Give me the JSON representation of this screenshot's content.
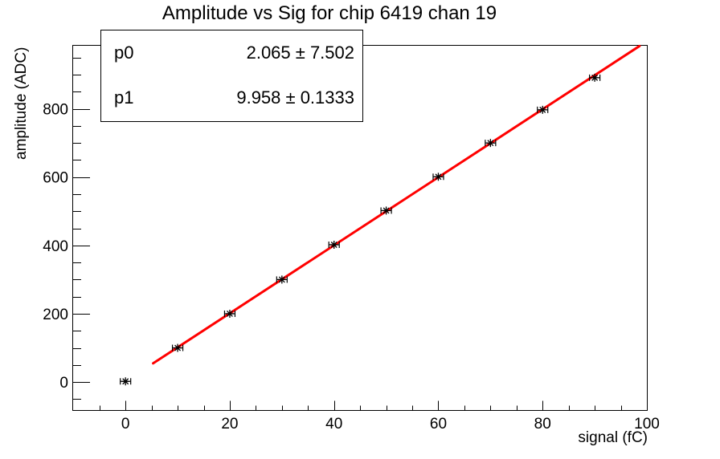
{
  "page": {
    "background": "#ffffff"
  },
  "chart_data": {
    "type": "scatter",
    "title": "Amplitude vs Sig for chip 6419 chan 19",
    "xlabel": "signal (fC)",
    "ylabel": "amplitude (ADC)",
    "xlim": [
      -10.2,
      100
    ],
    "ylim": [
      -82,
      987
    ],
    "grid": false,
    "legend_position": "none",
    "x_major_ticks": [
      0,
      20,
      40,
      60,
      80,
      100
    ],
    "x_tick_labels": [
      "0",
      "20",
      "40",
      "60",
      "80",
      "100"
    ],
    "x_minor_step": 5,
    "y_major_ticks": [
      0,
      200,
      400,
      600,
      800
    ],
    "y_tick_labels": [
      "0",
      "200",
      "400",
      "600",
      "800"
    ],
    "y_minor_step": 50,
    "series": [
      {
        "name": "amplitude vs signal",
        "marker": "asterisk",
        "color": "#000000",
        "x": [
          0,
          10,
          20,
          30,
          40,
          50,
          60,
          70,
          80,
          90
        ],
        "y": [
          2,
          100,
          200,
          300,
          402,
          502,
          601,
          700,
          797,
          891
        ],
        "xerr": 1
      }
    ],
    "fit": {
      "name": "linear fit",
      "color": "#ff0000",
      "p0": 2.065,
      "p1": 9.958,
      "x_range": [
        5.3,
        98.6
      ],
      "line_width": 3
    }
  },
  "stats_box": {
    "rows": [
      {
        "param": "p0",
        "value": "2.065 ± 7.502"
      },
      {
        "param": "p1",
        "value": "9.958 ± 0.1333"
      }
    ]
  }
}
